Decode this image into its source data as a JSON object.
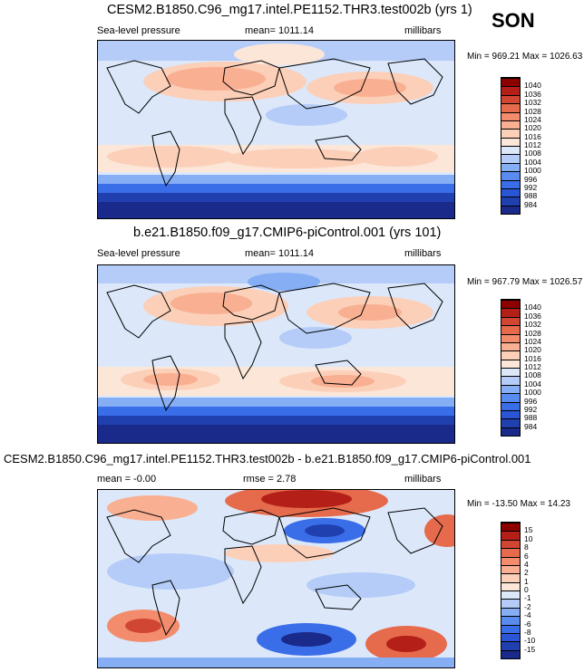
{
  "season": "SON",
  "colors": {
    "abs_levels": [
      "#1a2a8a",
      "#2040b0",
      "#2a56d6",
      "#3a6ee8",
      "#5a8cf0",
      "#86aef5",
      "#b4ccf7",
      "#dce8fa",
      "#fbe6d8",
      "#fccfb8",
      "#f9af91",
      "#f28c6c",
      "#e66a4c",
      "#d04632",
      "#b42018",
      "#8c0000"
    ],
    "diff_levels": [
      "#1a2a8a",
      "#2040b0",
      "#2a56d6",
      "#3a6ee8",
      "#5a8cf0",
      "#86aef5",
      "#b4ccf7",
      "#dce8fa",
      "#fbe6d8",
      "#fccfb8",
      "#f9af91",
      "#f28c6c",
      "#e66a4c",
      "#d04632",
      "#b42018",
      "#8c0000"
    ]
  },
  "panels": [
    {
      "title": "CESM2.B1850.C96_mg17.intel.PE1152.THR3.test002b (yrs 1)",
      "left_label": "Sea-level pressure",
      "mean_text": "mean= 1011.14",
      "units": "millibars",
      "minmax": "Min = 969.21 Max = 1026.63",
      "colorbar_labels": [
        "984",
        "988",
        "992",
        "996",
        "1000",
        "1004",
        "1008",
        "1012",
        "1016",
        "1020",
        "1024",
        "1028",
        "1032",
        "1036",
        "1040"
      ]
    },
    {
      "title": "b.e21.B1850.f09_g17.CMIP6-piControl.001 (yrs 101)",
      "left_label": "Sea-level pressure",
      "mean_text": "mean= 1011.14",
      "units": "millibars",
      "minmax": "Min = 967.79 Max = 1026.57",
      "colorbar_labels": [
        "984",
        "988",
        "992",
        "996",
        "1000",
        "1004",
        "1008",
        "1012",
        "1016",
        "1020",
        "1024",
        "1028",
        "1032",
        "1036",
        "1040"
      ]
    },
    {
      "title": "CESM2.B1850.C96_mg17.intel.PE1152.THR3.test002b - b.e21.B1850.f09_g17.CMIP6-piControl.001",
      "left_label": "mean =  -0.00",
      "mean_text": "rmse =   2.78",
      "units": "millibars",
      "minmax": "Min = -13.50 Max =  14.23",
      "colorbar_labels": [
        "-15",
        "-10",
        "-8",
        "-6",
        "-4",
        "-2",
        "-1",
        "0",
        "1",
        "2",
        "4",
        "6",
        "8",
        "10",
        "15"
      ]
    }
  ]
}
